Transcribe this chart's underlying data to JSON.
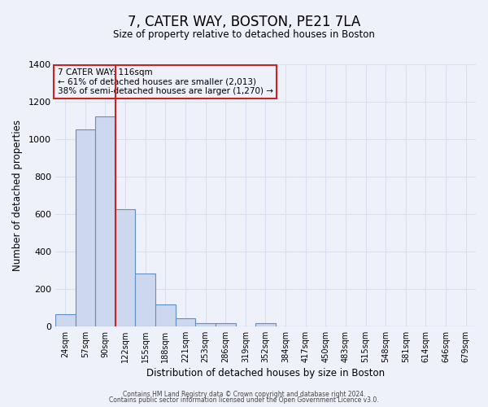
{
  "title": "7, CATER WAY, BOSTON, PE21 7LA",
  "subtitle": "Size of property relative to detached houses in Boston",
  "xlabel": "Distribution of detached houses by size in Boston",
  "ylabel": "Number of detached properties",
  "bar_color": "#cdd8ef",
  "bar_edge_color": "#5f8fc4",
  "background_color": "#eef1fa",
  "grid_color": "#d8dff0",
  "annotation_box_edge": "#cc2222",
  "vline_color": "#cc2222",
  "annotation_text": "7 CATER WAY: 116sqm\n← 61% of detached houses are smaller (2,013)\n38% of semi-detached houses are larger (1,270) →",
  "footer_line1": "Contains HM Land Registry data © Crown copyright and database right 2024.",
  "footer_line2": "Contains public sector information licensed under the Open Government Licence v3.0.",
  "categories": [
    "24sqm",
    "57sqm",
    "90sqm",
    "122sqm",
    "155sqm",
    "188sqm",
    "221sqm",
    "253sqm",
    "286sqm",
    "319sqm",
    "352sqm",
    "384sqm",
    "417sqm",
    "450sqm",
    "483sqm",
    "515sqm",
    "548sqm",
    "581sqm",
    "614sqm",
    "646sqm",
    "679sqm"
  ],
  "values": [
    65,
    1050,
    1120,
    625,
    280,
    118,
    42,
    18,
    18,
    0,
    18,
    0,
    0,
    0,
    0,
    0,
    0,
    0,
    0,
    0,
    0
  ],
  "vline_x": 2.5,
  "ylim": [
    0,
    1400
  ],
  "yticks": [
    0,
    200,
    400,
    600,
    800,
    1000,
    1200,
    1400
  ]
}
